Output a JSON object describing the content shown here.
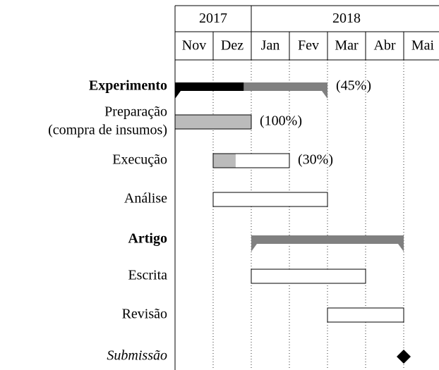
{
  "chart_data": {
    "type": "gantt",
    "years": [
      {
        "name": "2017",
        "first_month": "Nov"
      },
      {
        "name": "2018",
        "first_month": "Jan"
      }
    ],
    "months": [
      "Nov",
      "Dez",
      "Jan",
      "Fev",
      "Mar",
      "Abr",
      "Mai"
    ],
    "tasks": [
      {
        "kind": "group",
        "name_lines": [
          "Experimento"
        ],
        "start": "Nov",
        "end": "Fev",
        "progress": 45,
        "progress_label": "(45%)"
      },
      {
        "kind": "bar",
        "name_lines": [
          "Preparação",
          "(compra de insumos)"
        ],
        "start": "Nov",
        "end": "Dez",
        "progress": 100,
        "progress_label": "(100%)"
      },
      {
        "kind": "bar",
        "name_lines": [
          "Execução"
        ],
        "start": "Dez",
        "end": "Jan",
        "progress": 30,
        "progress_label": "(30%)"
      },
      {
        "kind": "bar",
        "name_lines": [
          "Análise"
        ],
        "start": "Dez",
        "end": "Fev"
      },
      {
        "kind": "group",
        "name_lines": [
          "Artigo"
        ],
        "start": "Jan",
        "end": "Abr"
      },
      {
        "kind": "bar",
        "name_lines": [
          "Escrita"
        ],
        "start": "Jan",
        "end": "Mar"
      },
      {
        "kind": "bar",
        "name_lines": [
          "Revisão"
        ],
        "start": "Mar",
        "end": "Abr"
      },
      {
        "kind": "milestone",
        "name_lines": [
          "Submissão"
        ],
        "start": "Abr",
        "end": "Abr"
      }
    ]
  }
}
